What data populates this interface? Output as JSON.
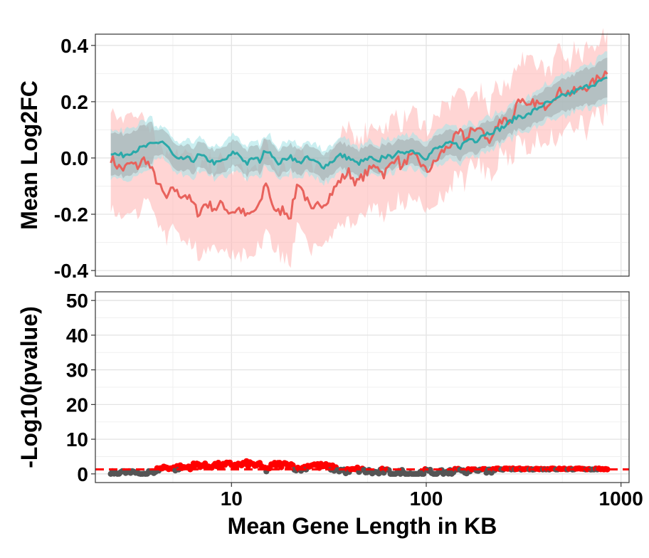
{
  "chart_data": [
    {
      "type": "line",
      "xlabel": "",
      "ylabel": "Mean Log2FC",
      "x_scale": "log10",
      "xlim": [
        2.0,
        1100
      ],
      "ylim": [
        -0.42,
        0.44
      ],
      "x_ticks": [
        10,
        100,
        1000
      ],
      "y_ticks": [
        -0.4,
        -0.2,
        0.0,
        0.2,
        0.4
      ],
      "y_tick_labels": [
        "-0.4",
        "-0.2",
        "0.0",
        "0.2",
        "0.4"
      ],
      "grid": true,
      "series": [
        {
          "color": "#F8766D",
          "band_color": "#FFB3B0",
          "x": [
            2.4,
            2.6,
            2.8,
            3.0,
            3.3,
            3.6,
            4.0,
            4.4,
            4.7,
            5.0,
            5.3,
            5.8,
            6.3,
            6.8,
            7.3,
            7.8,
            8.4,
            9.0,
            9.6,
            10.3,
            11.0,
            12.0,
            13.0,
            14.0,
            15.0,
            16.0,
            17.0,
            18.5,
            20,
            22,
            24,
            26,
            28,
            30,
            33,
            36,
            40,
            44,
            48,
            52,
            56,
            60,
            65,
            70,
            75,
            80,
            90,
            100,
            110,
            120,
            130,
            140,
            150,
            160,
            170,
            180,
            190,
            210,
            230,
            250,
            270,
            300,
            330,
            360,
            400,
            450,
            500,
            550,
            600,
            700,
            850
          ],
          "y": [
            0.0,
            -0.03,
            -0.04,
            -0.02,
            -0.03,
            0.0,
            -0.06,
            -0.12,
            -0.15,
            -0.1,
            -0.13,
            -0.13,
            -0.16,
            -0.2,
            -0.16,
            -0.17,
            -0.18,
            -0.16,
            -0.19,
            -0.19,
            -0.18,
            -0.21,
            -0.19,
            -0.17,
            -0.08,
            -0.15,
            -0.2,
            -0.18,
            -0.21,
            -0.08,
            -0.14,
            -0.2,
            -0.16,
            -0.16,
            -0.12,
            -0.08,
            -0.05,
            -0.09,
            -0.06,
            -0.04,
            -0.02,
            -0.06,
            -0.03,
            0.01,
            -0.04,
            0.0,
            0.0,
            -0.05,
            -0.02,
            0.02,
            0.04,
            0.07,
            0.09,
            0.06,
            0.11,
            0.08,
            0.12,
            0.05,
            0.11,
            0.15,
            0.12,
            0.22,
            0.17,
            0.2,
            0.18,
            0.22,
            0.24,
            0.23,
            0.24,
            0.26,
            0.31
          ]
        },
        {
          "color": "#00BFC4",
          "band_color": "#A9E5E8",
          "x": [
            2.4,
            2.6,
            2.8,
            3.0,
            3.3,
            3.6,
            4.0,
            4.4,
            4.7,
            5.0,
            5.3,
            5.8,
            6.3,
            6.8,
            7.3,
            7.8,
            8.4,
            9.0,
            9.6,
            10.3,
            11.0,
            12.0,
            13.0,
            14.0,
            15.0,
            16.0,
            17.0,
            18.5,
            20,
            22,
            24,
            26,
            28,
            30,
            33,
            36,
            40,
            44,
            48,
            52,
            56,
            60,
            65,
            70,
            75,
            80,
            90,
            100,
            110,
            120,
            130,
            140,
            150,
            160,
            170,
            180,
            190,
            210,
            230,
            250,
            270,
            300,
            330,
            360,
            400,
            450,
            500,
            550,
            600,
            700,
            850
          ],
          "y": [
            0.02,
            0.01,
            0.01,
            0.02,
            0.03,
            0.04,
            0.05,
            0.06,
            0.04,
            0.01,
            -0.01,
            0.0,
            -0.01,
            0.01,
            0.0,
            -0.01,
            -0.02,
            -0.01,
            0.0,
            0.02,
            0.01,
            -0.02,
            0.0,
            -0.01,
            0.03,
            0.02,
            -0.02,
            -0.01,
            0.01,
            -0.02,
            0.0,
            -0.01,
            -0.02,
            -0.03,
            -0.01,
            0.01,
            0.0,
            -0.02,
            -0.01,
            0.0,
            -0.02,
            0.01,
            0.0,
            0.02,
            0.01,
            0.03,
            0.02,
            0.0,
            0.03,
            0.04,
            0.05,
            0.05,
            0.04,
            0.06,
            0.07,
            0.06,
            0.08,
            0.09,
            0.1,
            0.11,
            0.13,
            0.15,
            0.15,
            0.17,
            0.19,
            0.2,
            0.22,
            0.23,
            0.24,
            0.26,
            0.28
          ]
        }
      ]
    },
    {
      "type": "scatter",
      "xlabel": "Mean Gene Length in KB",
      "ylabel": "-Log10(pvalue)",
      "x_scale": "log10",
      "xlim": [
        2.0,
        1100
      ],
      "ylim": [
        -2.5,
        52.5
      ],
      "x_ticks": [
        10,
        100,
        1000
      ],
      "x_tick_labels": [
        "10",
        "100",
        "1000"
      ],
      "y_ticks": [
        0,
        10,
        20,
        30,
        40,
        50
      ],
      "y_tick_labels": [
        "0",
        "10",
        "20",
        "30",
        "40",
        "50"
      ],
      "grid": true,
      "threshold": 1.3,
      "threshold_color": "#FF0000",
      "nonsig_color": "#555555",
      "sig_color": "#FF0000"
    }
  ]
}
